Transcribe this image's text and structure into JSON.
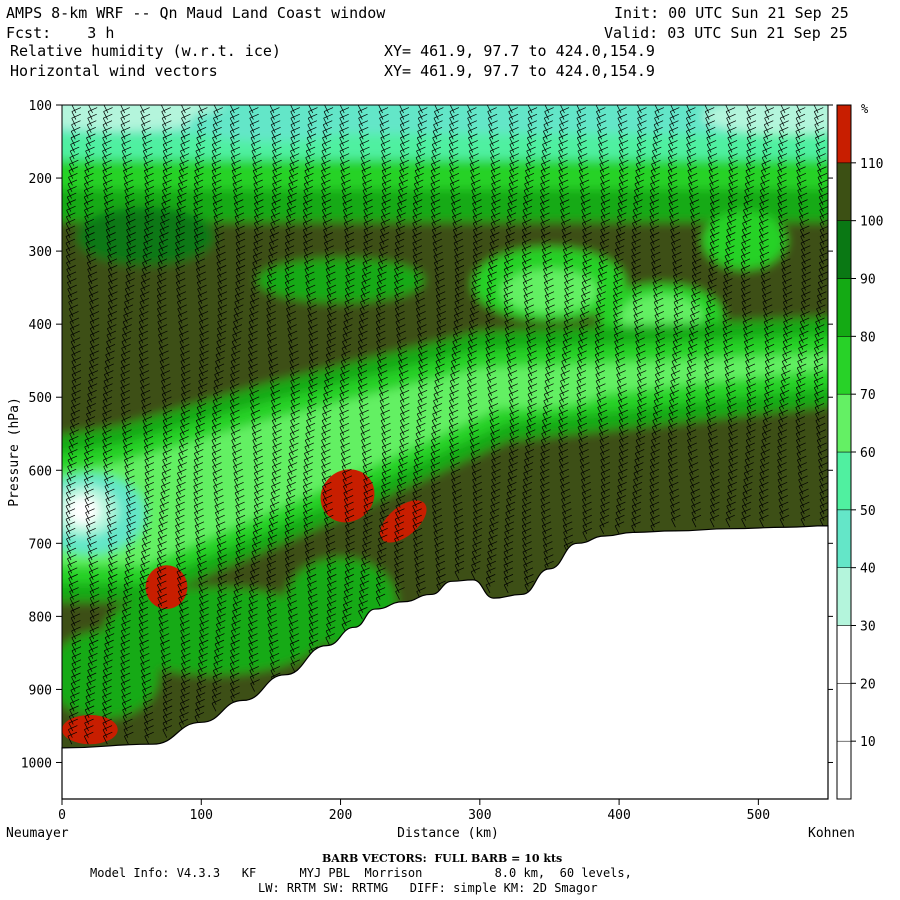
{
  "header": {
    "title": "AMPS 8-km WRF -- Qn Maud Land Coast window",
    "init": "Init: 00 UTC Sun 21 Sep 25",
    "fcst": "Fcst:    3 h",
    "valid": "Valid: 03 UTC Sun 21 Sep 25",
    "field1": "Relative humidity (w.r.t. ice)",
    "field2": "Horizontal wind vectors",
    "xy1": "XY= 461.9, 97.7 to 424.0,154.9",
    "xy2": "XY= 461.9, 97.7 to 424.0,154.9"
  },
  "footer": {
    "barb_note": "BARB VECTORS:  FULL BARB = 10 kts",
    "model_line1": "Model Info: V4.3.3   KF      MYJ PBL  Morrison          8.0 km,  60 levels,",
    "model_line2": "LW: RRTM SW: RRTMG   DIFF: simple KM: 2D Smagor"
  },
  "chart_data": {
    "type": "heatmap",
    "xlabel": "Distance (km)",
    "ylabel": "Pressure (hPa)",
    "x_left_label": "Neumayer",
    "x_right_label": "Kohnen",
    "xlim": [
      0,
      550
    ],
    "ylim": [
      1050,
      100
    ],
    "x_ticks": [
      0,
      100,
      200,
      300,
      400,
      500
    ],
    "y_ticks": [
      100,
      200,
      300,
      400,
      500,
      600,
      700,
      800,
      900,
      1000
    ],
    "colorbar": {
      "unit": "%",
      "levels": [
        10,
        20,
        30,
        40,
        50,
        60,
        70,
        80,
        90,
        100,
        110
      ],
      "colors": [
        "#ffffff",
        "#ffffff",
        "#ffffff",
        "#b4f5dc",
        "#64e6c8",
        "#50f0a0",
        "#64f064",
        "#28d228",
        "#14aa14",
        "#0a7814",
        "#3c5014",
        "#c81e00"
      ]
    },
    "terrain_pressure": {
      "x": [
        0,
        65,
        100,
        130,
        160,
        190,
        210,
        225,
        245,
        265,
        280,
        295,
        310,
        330,
        350,
        370,
        390,
        410,
        440,
        480,
        520,
        550
      ],
      "p": [
        980,
        975,
        945,
        915,
        880,
        840,
        815,
        790,
        780,
        770,
        752,
        750,
        775,
        770,
        735,
        700,
        690,
        685,
        683,
        680,
        678,
        676
      ]
    },
    "humidity_regions": [
      {
        "label": "upper moist band",
        "x": [
          0,
          550
        ],
        "p": [
          100,
          200
        ],
        "rh_range": [
          30,
          70
        ]
      },
      {
        "label": "dry pocket",
        "x": [
          310,
          380
        ],
        "p": [
          330,
          400
        ],
        "rh_range": [
          60,
          80
        ]
      },
      {
        "label": "dry pocket",
        "x": [
          390,
          450
        ],
        "p": [
          360,
          420
        ],
        "rh_range": [
          60,
          80
        ]
      },
      {
        "label": "dry tongue",
        "x": [
          0,
          60
        ],
        "p": [
          620,
          700
        ],
        "rh_range": [
          10,
          50
        ]
      },
      {
        "label": "supersaturated",
        "x": [
          185,
          225
        ],
        "p": [
          600,
          670
        ],
        "rh_range": [
          110,
          120
        ]
      },
      {
        "label": "supersaturated",
        "x": [
          225,
          265
        ],
        "p": [
          650,
          690
        ],
        "rh_range": [
          110,
          120
        ]
      },
      {
        "label": "supersaturated",
        "x": [
          60,
          90
        ],
        "p": [
          730,
          790
        ],
        "rh_range": [
          110,
          120
        ]
      },
      {
        "label": "supersaturated",
        "x": [
          0,
          40
        ],
        "p": [
          935,
          975
        ],
        "rh_range": [
          110,
          120
        ]
      }
    ]
  }
}
